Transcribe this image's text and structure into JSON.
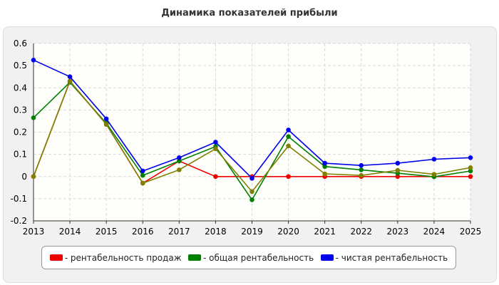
{
  "chart_data": {
    "type": "line",
    "title": "Динамика показателей прибыли",
    "xlabel": "",
    "ylabel": "",
    "categories": [
      "2013",
      "2014",
      "2015",
      "2016",
      "2017",
      "2018",
      "2019",
      "2020",
      "2021",
      "2022",
      "2023",
      "2024",
      "2025"
    ],
    "ylim": [
      -0.2,
      0.6
    ],
    "yticks": [
      "-0.2",
      "-0.1",
      "0",
      "0.1",
      "0.2",
      "0.3",
      "0.4",
      "0.5",
      "0.6"
    ],
    "grid": true,
    "legend_position": "bottom",
    "series": [
      {
        "name": "- рентабельность продаж",
        "color": "#ee0000",
        "values": [
          0.0,
          0.43,
          0.235,
          -0.03,
          0.07,
          0.0,
          0.0,
          0.0,
          0.0,
          0.0,
          0.0,
          0.0,
          0.0
        ]
      },
      {
        "name": "- общая рентабельность",
        "color": "#008000",
        "values": [
          0.265,
          0.425,
          0.24,
          0.005,
          0.07,
          0.135,
          -0.105,
          0.18,
          0.045,
          0.03,
          0.015,
          -0.001,
          0.025
        ]
      },
      {
        "name": "- чистая рентабельность",
        "color": "#0000ee",
        "values": [
          0.525,
          0.45,
          0.26,
          0.025,
          0.085,
          0.155,
          -0.008,
          0.21,
          0.06,
          0.05,
          0.06,
          0.078,
          0.085
        ]
      },
      {
        "name": "",
        "color": "#808000",
        "values": [
          0.0,
          0.43,
          0.235,
          -0.03,
          0.03,
          0.125,
          -0.068,
          0.138,
          0.012,
          0.005,
          0.028,
          0.01,
          0.04
        ]
      }
    ]
  }
}
